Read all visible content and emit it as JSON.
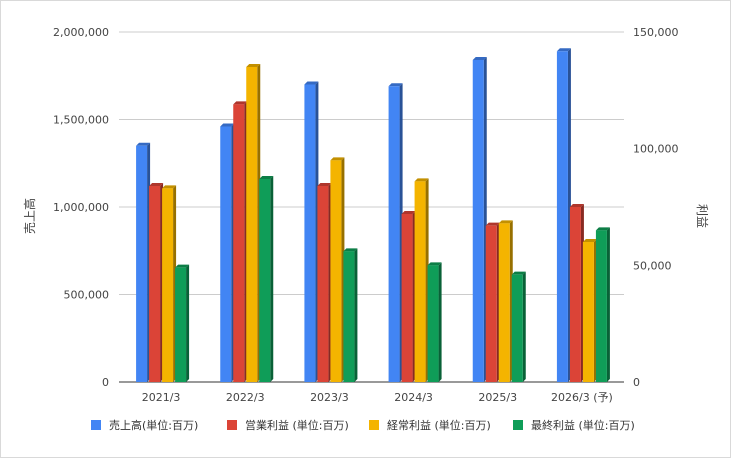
{
  "chart_data": {
    "type": "bar",
    "categories": [
      "2021/3",
      "2022/3",
      "2023/3",
      "2024/3",
      "2025/3",
      "2026/3 (予)"
    ],
    "y_left_label": "売上高",
    "y_right_label": "利益",
    "y_left_range": [
      0,
      2000000
    ],
    "y_right_range": [
      0,
      150000
    ],
    "y_left_ticks": [
      "0",
      "500,000",
      "1,000,000",
      "1,500,000",
      "2,000,000"
    ],
    "y_right_ticks": [
      "0",
      "50,000",
      "100,000",
      "150,000"
    ],
    "grid": true,
    "legend_position": "bottom",
    "series": [
      {
        "name": "売上高(単位:百万)",
        "axis": "left",
        "color": "#4285f4",
        "values": [
          1350000,
          1460000,
          1700000,
          1690000,
          1840000,
          1890000
        ]
      },
      {
        "name": "営業利益 (単位:百万)",
        "axis": "right",
        "color": "#db4437",
        "values": [
          84000,
          119000,
          84000,
          72000,
          67000,
          75000
        ]
      },
      {
        "name": "経常利益 (単位:百万)",
        "axis": "right",
        "color": "#f4b400",
        "values": [
          83000,
          135000,
          95000,
          86000,
          68000,
          60000
        ]
      },
      {
        "name": "最終利益 (単位:百万)",
        "axis": "right",
        "color": "#0f9d58",
        "values": [
          49000,
          87000,
          56000,
          50000,
          46000,
          65000
        ]
      }
    ]
  }
}
